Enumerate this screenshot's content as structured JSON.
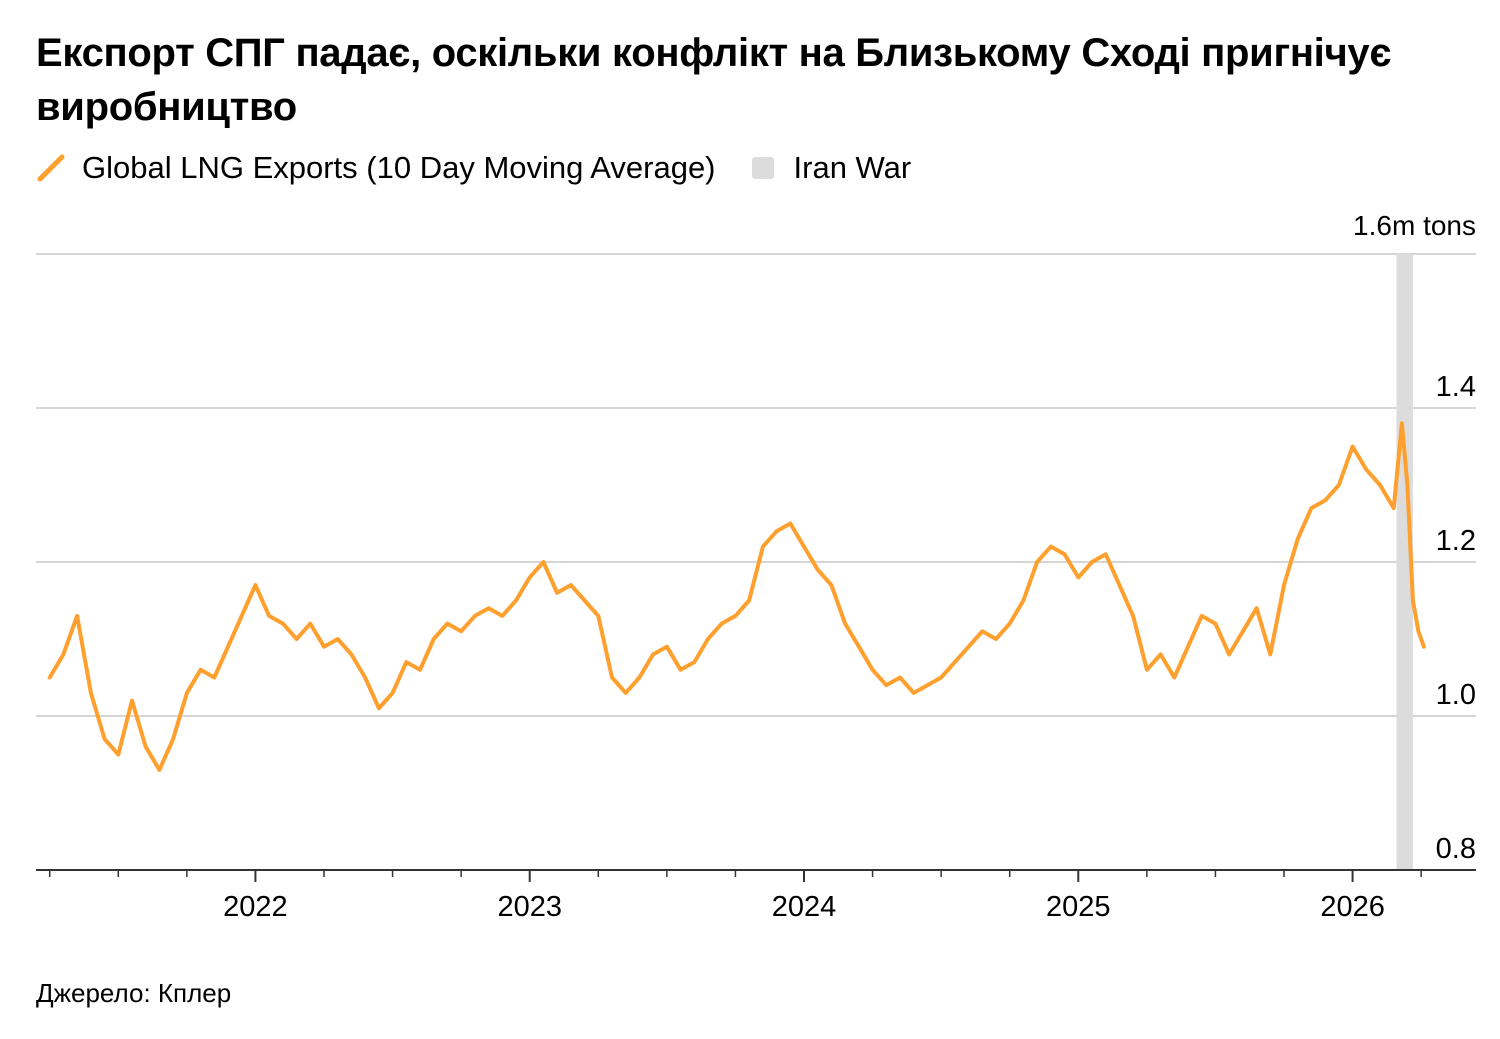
{
  "title": "Експорт СПГ падає, оскільки конфлікт на Близькому Сході пригнічує виробництво",
  "legend": {
    "series_label": "Global LNG Exports (10 Day Moving Average)",
    "band_label": "Iran War"
  },
  "unit_label": "1.6m tons",
  "source": "Джерело: Кплер",
  "colors": {
    "line": "#ff9f2e",
    "band": "#dcdcdc",
    "grid": "#d6d6d6",
    "axis": "#333333"
  },
  "chart_data": {
    "type": "line",
    "title": "Експорт СПГ падає, оскільки конфлікт на Близькому Сході пригнічує виробництво",
    "xlabel": "",
    "ylabel": "1.6m tons",
    "xlim": [
      2021.2,
      2026.45
    ],
    "ylim": [
      0.8,
      1.6
    ],
    "yticks": [
      0.8,
      1.0,
      1.2,
      1.4
    ],
    "ytick_labels": [
      "0.8",
      "1.0",
      "1.2",
      "1.4"
    ],
    "xticks": [
      2022,
      2023,
      2024,
      2025,
      2026
    ],
    "xtick_labels": [
      "2022",
      "2023",
      "2024",
      "2025",
      "2026"
    ],
    "shaded_region": {
      "label": "Iran War",
      "x_start": 2026.16,
      "x_end": 2026.22
    },
    "series": [
      {
        "name": "Global LNG Exports (10 Day Moving Average)",
        "x": [
          2021.25,
          2021.3,
          2021.35,
          2021.4,
          2021.45,
          2021.5,
          2021.55,
          2021.6,
          2021.65,
          2021.7,
          2021.75,
          2021.8,
          2021.85,
          2021.9,
          2021.95,
          2022.0,
          2022.05,
          2022.1,
          2022.15,
          2022.2,
          2022.25,
          2022.3,
          2022.35,
          2022.4,
          2022.45,
          2022.5,
          2022.55,
          2022.6,
          2022.65,
          2022.7,
          2022.75,
          2022.8,
          2022.85,
          2022.9,
          2022.95,
          2023.0,
          2023.05,
          2023.1,
          2023.15,
          2023.2,
          2023.25,
          2023.3,
          2023.35,
          2023.4,
          2023.45,
          2023.5,
          2023.55,
          2023.6,
          2023.65,
          2023.7,
          2023.75,
          2023.8,
          2023.85,
          2023.9,
          2023.95,
          2024.0,
          2024.05,
          2024.1,
          2024.15,
          2024.2,
          2024.25,
          2024.3,
          2024.35,
          2024.4,
          2024.45,
          2024.5,
          2024.55,
          2024.6,
          2024.65,
          2024.7,
          2024.75,
          2024.8,
          2024.85,
          2024.9,
          2024.95,
          2025.0,
          2025.05,
          2025.1,
          2025.15,
          2025.2,
          2025.25,
          2025.3,
          2025.35,
          2025.4,
          2025.45,
          2025.5,
          2025.55,
          2025.6,
          2025.65,
          2025.7,
          2025.75,
          2025.8,
          2025.85,
          2025.9,
          2025.95,
          2026.0,
          2026.05,
          2026.1,
          2026.15,
          2026.18,
          2026.2,
          2026.22,
          2026.24,
          2026.26
        ],
        "values": [
          1.05,
          1.08,
          1.13,
          1.03,
          0.97,
          0.95,
          1.02,
          0.96,
          0.93,
          0.97,
          1.03,
          1.06,
          1.05,
          1.09,
          1.13,
          1.17,
          1.13,
          1.12,
          1.1,
          1.12,
          1.09,
          1.1,
          1.08,
          1.05,
          1.01,
          1.03,
          1.07,
          1.06,
          1.1,
          1.12,
          1.11,
          1.13,
          1.14,
          1.13,
          1.15,
          1.18,
          1.2,
          1.16,
          1.17,
          1.15,
          1.13,
          1.05,
          1.03,
          1.05,
          1.08,
          1.09,
          1.06,
          1.07,
          1.1,
          1.12,
          1.13,
          1.15,
          1.22,
          1.24,
          1.25,
          1.22,
          1.19,
          1.17,
          1.12,
          1.09,
          1.06,
          1.04,
          1.05,
          1.03,
          1.04,
          1.05,
          1.07,
          1.09,
          1.11,
          1.1,
          1.12,
          1.15,
          1.2,
          1.22,
          1.21,
          1.18,
          1.2,
          1.21,
          1.17,
          1.13,
          1.06,
          1.08,
          1.05,
          1.09,
          1.13,
          1.12,
          1.08,
          1.11,
          1.14,
          1.08,
          1.17,
          1.23,
          1.27,
          1.28,
          1.3,
          1.35,
          1.32,
          1.3,
          1.27,
          1.38,
          1.3,
          1.15,
          1.11,
          1.09
        ]
      }
    ]
  }
}
